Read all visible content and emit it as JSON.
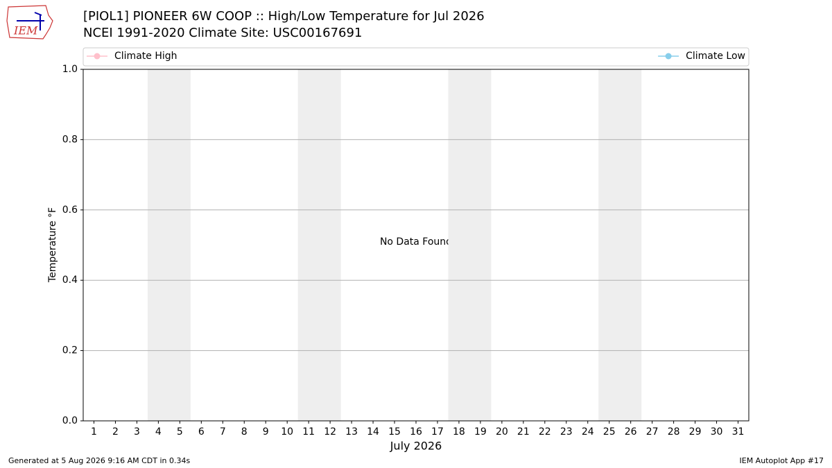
{
  "logo": "IEM",
  "footer_left": "Generated at 5 Aug 2026 9:16 AM CDT in 0.34s",
  "footer_right": "IEM Autoplot App #17",
  "chart_data": {
    "type": "line",
    "title": "[PIOL1] PIONEER 6W COOP :: High/Low Temperature for Jul 2026",
    "subtitle": "NCEI 1991-2020 Climate Site: USC00167691",
    "xlabel": "July 2026",
    "ylabel": "Temperature °F",
    "annotation": "No Data Found",
    "x": [
      1,
      2,
      3,
      4,
      5,
      6,
      7,
      8,
      9,
      10,
      11,
      12,
      13,
      14,
      15,
      16,
      17,
      18,
      19,
      20,
      21,
      22,
      23,
      24,
      25,
      26,
      27,
      28,
      29,
      30,
      31
    ],
    "series": [
      {
        "name": "Climate High",
        "color": "#ffc0cb",
        "values": [
          null,
          null,
          null,
          null,
          null,
          null,
          null,
          null,
          null,
          null,
          null,
          null,
          null,
          null,
          null,
          null,
          null,
          null,
          null,
          null,
          null,
          null,
          null,
          null,
          null,
          null,
          null,
          null,
          null,
          null,
          null
        ]
      },
      {
        "name": "Climate Low",
        "color": "#87ceeb",
        "values": [
          null,
          null,
          null,
          null,
          null,
          null,
          null,
          null,
          null,
          null,
          null,
          null,
          null,
          null,
          null,
          null,
          null,
          null,
          null,
          null,
          null,
          null,
          null,
          null,
          null,
          null,
          null,
          null,
          null,
          null,
          null
        ]
      }
    ],
    "shaded_ranges": [
      [
        3.5,
        5.5
      ],
      [
        10.5,
        12.5
      ],
      [
        17.5,
        19.5
      ],
      [
        24.5,
        26.5
      ]
    ],
    "shade_color": "#eeeeee",
    "xlim": [
      0.5,
      31.5
    ],
    "xticks": [
      1,
      2,
      3,
      4,
      5,
      6,
      7,
      8,
      9,
      10,
      11,
      12,
      13,
      14,
      15,
      16,
      17,
      18,
      19,
      20,
      21,
      22,
      23,
      24,
      25,
      26,
      27,
      28,
      29,
      30,
      31
    ],
    "ylim": [
      0,
      1
    ],
    "yticks": [
      {
        "value": 0,
        "label": "0.0"
      },
      0.2,
      0.4,
      0.6,
      0.8,
      {
        "value": 1,
        "label": "1.0"
      }
    ],
    "grid": true
  }
}
